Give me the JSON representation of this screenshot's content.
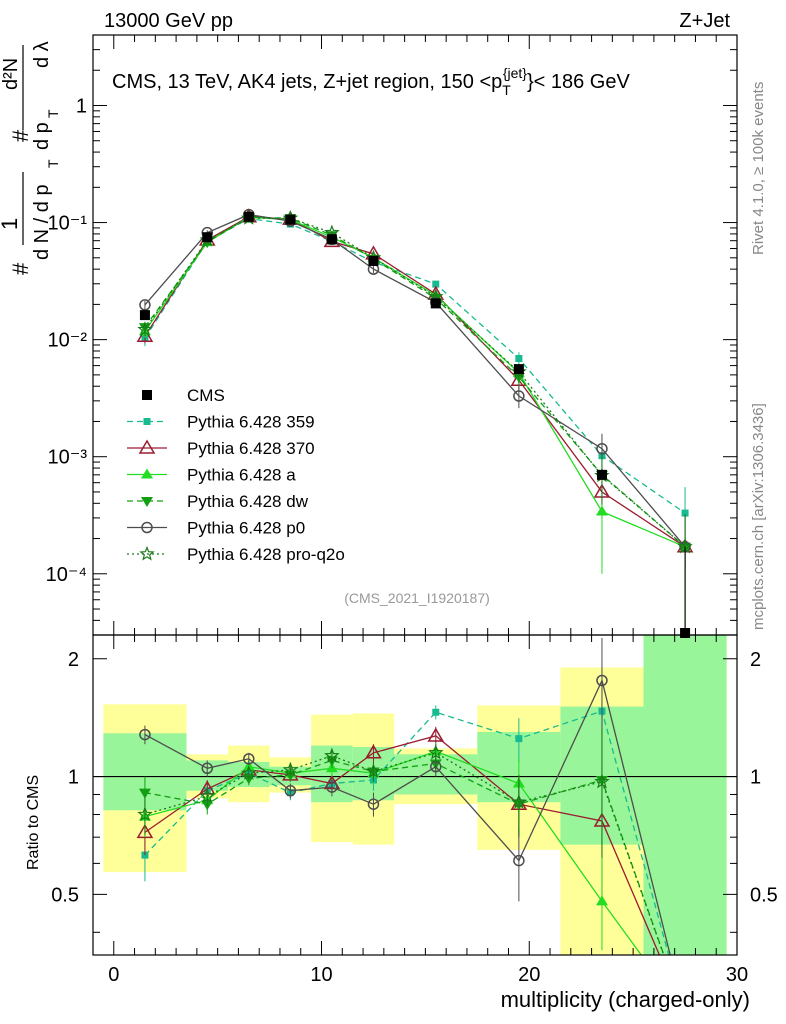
{
  "header": {
    "left": "13000 GeV pp",
    "right": "Z+Jet"
  },
  "side_labels": {
    "rivet": "Rivet 4.1.0, ≥ 100k events",
    "mcplots": "mcplots.cern.ch [arXiv:1306.3436]"
  },
  "main": {
    "title": "CMS, 13 TeV, AK4 jets, Z+jet region, 150 <p",
    "title_sub": "T",
    "title_sup": "{jet}",
    "title_tail": "}< 186 GeV",
    "ylabel": "1 / dN/dpT  d²N / dpT dλ",
    "watermark": "(CMS_2021_I1920187)",
    "yticks": [
      "10⁻⁴",
      "10⁻³",
      "10⁻²",
      "10⁻¹",
      "1"
    ]
  },
  "ratio": {
    "ylabel": "Ratio to CMS",
    "yticks_left": [
      "0.5",
      "1",
      "2"
    ],
    "yticks_right": [
      "0.5",
      "1",
      "2"
    ]
  },
  "xaxis": {
    "label": "multiplicity (charged-only)",
    "ticks": [
      "0",
      "10",
      "20",
      "30"
    ]
  },
  "legend": [
    {
      "name": "CMS",
      "color": "#000000",
      "marker": "square",
      "dash": "none"
    },
    {
      "name": "Pythia 6.428 359",
      "color": "#17bb8f",
      "marker": "smallsquare",
      "dash": "6,4"
    },
    {
      "name": "Pythia 6.428 370",
      "color": "#9b1b30",
      "marker": "triangle-open",
      "dash": "solid"
    },
    {
      "name": "Pythia 6.428 a",
      "color": "#22dd22",
      "marker": "triangle",
      "dash": "solid"
    },
    {
      "name": "Pythia 6.428 dw",
      "color": "#12a012",
      "marker": "triangle-down",
      "dash": "6,4"
    },
    {
      "name": "Pythia 6.428 p0",
      "color": "#4d4d4d",
      "marker": "circle-open",
      "dash": "solid"
    },
    {
      "name": "Pythia 6.428 pro-q2o",
      "color": "#1a7a1a",
      "marker": "star-open",
      "dash": "2,3"
    }
  ],
  "chart_data": {
    "type": "line",
    "xlim": [
      -1,
      30
    ],
    "ylim_main": [
      3e-05,
      4.0
    ],
    "ylim_ratio": [
      0.35,
      2.3
    ],
    "x": [
      1.5,
      4.5,
      6.5,
      8.5,
      10.5,
      12.5,
      15.5,
      19.5,
      23.5,
      27.5
    ],
    "bins": [
      [
        -0.5,
        3.5
      ],
      [
        3.5,
        5.5
      ],
      [
        5.5,
        7.5
      ],
      [
        7.5,
        9.5
      ],
      [
        9.5,
        11.5
      ],
      [
        11.5,
        13.5
      ],
      [
        13.5,
        17.5
      ],
      [
        17.5,
        21.5
      ],
      [
        21.5,
        25.5
      ],
      [
        25.5,
        29.5
      ]
    ],
    "data": {
      "name": "CMS",
      "values": [
        0.0162,
        0.075,
        0.112,
        0.106,
        0.072,
        0.047,
        0.0204,
        0.0056,
        0.0007,
        3e-05
      ],
      "band_inner": [
        [
          0.82,
          1.29
        ],
        [
          0.92,
          1.1
        ],
        [
          0.94,
          1.09
        ],
        [
          0.95,
          1.06
        ],
        [
          0.86,
          1.2
        ],
        [
          0.87,
          1.19
        ],
        [
          0.9,
          1.14
        ],
        [
          0.86,
          1.3
        ],
        [
          0.67,
          1.51
        ],
        [
          0.3,
          2.3
        ]
      ],
      "band_outer": [
        [
          0.57,
          1.53
        ],
        [
          0.88,
          1.14
        ],
        [
          0.86,
          1.2
        ],
        [
          0.91,
          1.12
        ],
        [
          0.68,
          1.44
        ],
        [
          0.67,
          1.45
        ],
        [
          0.85,
          1.18
        ],
        [
          0.65,
          1.52
        ],
        [
          0.3,
          1.9
        ],
        [
          0.3,
          2.3
        ]
      ]
    },
    "series": [
      {
        "name": "Pythia 6.428 359",
        "values": [
          0.0103,
          0.069,
          0.108,
          0.097,
          0.069,
          0.046,
          0.0298,
          0.0069,
          0.00102,
          0.00033
        ],
        "errors": [
          0.0015,
          0.004,
          0.005,
          0.004,
          0.003,
          0.003,
          0.002,
          0.0009,
          0.0003,
          0.00022
        ],
        "ratio": [
          0.63,
          0.92,
          1.02,
          0.91,
          0.96,
          0.98,
          1.46,
          1.25,
          1.47,
          null
        ],
        "ratio_err": [
          0.09,
          0.05,
          0.04,
          0.04,
          0.05,
          0.06,
          0.06,
          0.16,
          0.45,
          null
        ]
      },
      {
        "name": "Pythia 6.428 370",
        "values": [
          0.0107,
          0.071,
          0.112,
          0.107,
          0.069,
          0.054,
          0.0245,
          0.0045,
          0.0005,
          0.00017
        ],
        "errors": [
          0.0014,
          0.004,
          0.005,
          0.004,
          0.003,
          0.003,
          0.002,
          0.0008,
          0.0002,
          0.00015
        ],
        "ratio": [
          0.72,
          0.93,
          1.04,
          1.01,
          0.96,
          1.15,
          1.27,
          0.85,
          0.77,
          null
        ],
        "ratio_err": [
          0.09,
          0.05,
          0.04,
          0.04,
          0.05,
          0.06,
          0.07,
          0.15,
          0.3,
          null
        ]
      },
      {
        "name": "Pythia 6.428 a",
        "values": [
          0.0118,
          0.068,
          0.111,
          0.106,
          0.075,
          0.05,
          0.0238,
          0.0052,
          0.00034,
          0.00017
        ],
        "errors": [
          0.0014,
          0.004,
          0.005,
          0.004,
          0.003,
          0.003,
          0.002,
          0.0008,
          0.00024,
          0.00015
        ],
        "ratio": [
          0.79,
          0.87,
          1.06,
          1.02,
          1.05,
          1.02,
          1.16,
          0.96,
          0.48,
          null
        ],
        "ratio_err": [
          0.09,
          0.05,
          0.04,
          0.04,
          0.05,
          0.06,
          0.06,
          0.15,
          0.3,
          null
        ]
      },
      {
        "name": "Pythia 6.428 dw",
        "values": [
          0.0128,
          0.068,
          0.111,
          0.109,
          0.078,
          0.049,
          0.0225,
          0.0048,
          0.0007,
          0.00017
        ],
        "errors": [
          0.0014,
          0.004,
          0.005,
          0.004,
          0.003,
          0.003,
          0.002,
          0.0008,
          0.0003,
          0.00015
        ],
        "ratio": [
          0.91,
          0.85,
          0.99,
          1.01,
          1.1,
          1.03,
          1.08,
          0.85,
          0.98,
          null
        ],
        "ratio_err": [
          0.09,
          0.05,
          0.04,
          0.04,
          0.05,
          0.06,
          0.06,
          0.15,
          0.35,
          null
        ]
      },
      {
        "name": "Pythia 6.428 p0",
        "values": [
          0.0198,
          0.082,
          0.117,
          0.103,
          0.072,
          0.04,
          0.0208,
          0.0033,
          0.00117,
          0.00017
        ],
        "errors": [
          0.0016,
          0.004,
          0.005,
          0.004,
          0.003,
          0.003,
          0.002,
          0.0007,
          0.0004,
          0.00015
        ],
        "ratio": [
          1.28,
          1.05,
          1.11,
          0.92,
          0.94,
          0.85,
          1.06,
          0.61,
          1.76,
          null
        ],
        "ratio_err": [
          0.07,
          0.05,
          0.04,
          0.04,
          0.05,
          0.06,
          0.06,
          0.13,
          0.5,
          null
        ]
      },
      {
        "name": "Pythia 6.428 pro-q2o",
        "values": [
          0.0122,
          0.071,
          0.109,
          0.109,
          0.082,
          0.05,
          0.0232,
          0.0053,
          0.00069,
          0.00017
        ],
        "errors": [
          0.0014,
          0.004,
          0.005,
          0.004,
          0.003,
          0.003,
          0.002,
          0.0008,
          0.0003,
          0.00015
        ],
        "ratio": [
          0.8,
          0.89,
          1.02,
          1.04,
          1.13,
          1.03,
          1.15,
          0.86,
          0.97,
          null
        ],
        "ratio_err": [
          0.09,
          0.05,
          0.04,
          0.04,
          0.05,
          0.06,
          0.06,
          0.15,
          0.35,
          null
        ]
      }
    ]
  }
}
